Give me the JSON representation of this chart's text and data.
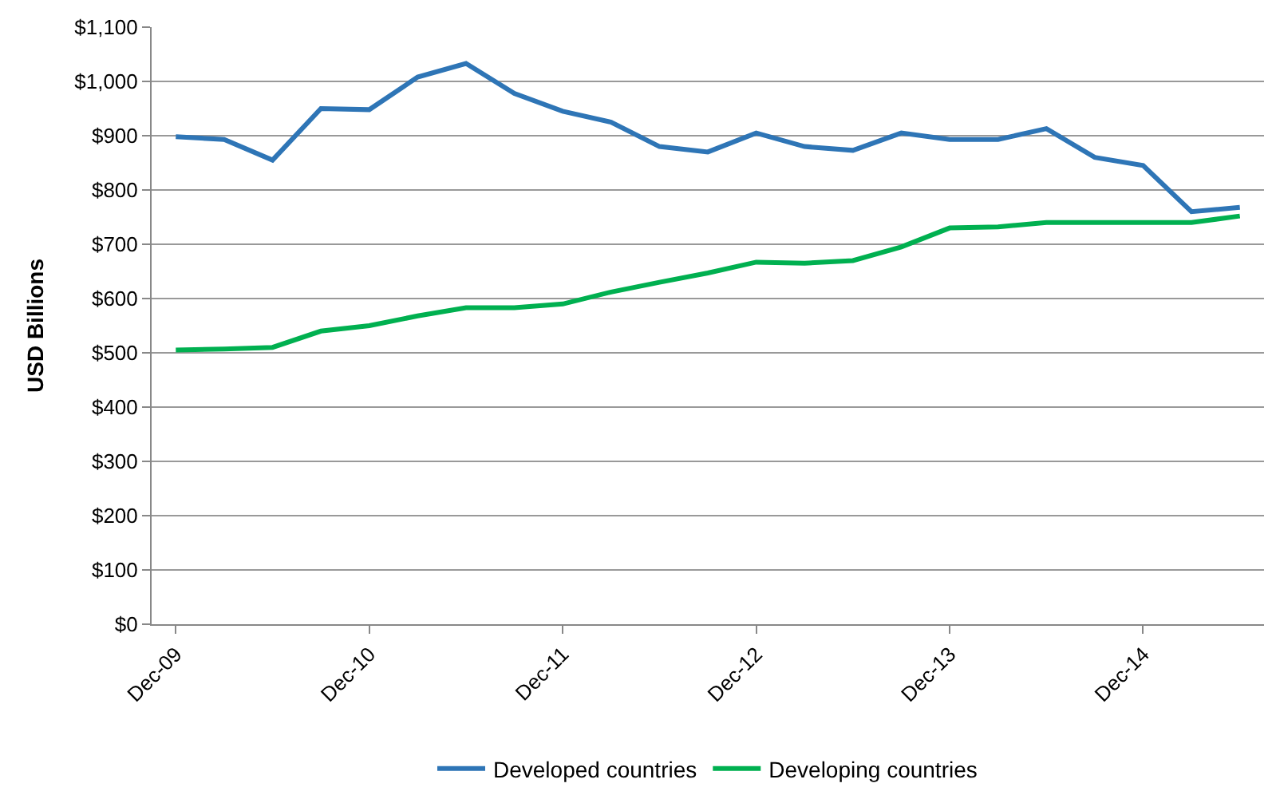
{
  "chart_data": {
    "type": "line",
    "ylabel": "USD Billions",
    "categories": [
      "Dec-09",
      null,
      null,
      null,
      "Dec-10",
      null,
      null,
      null,
      "Dec-11",
      null,
      null,
      null,
      "Dec-12",
      null,
      null,
      null,
      "Dec-13",
      null,
      null,
      null,
      "Dec-14",
      null,
      null
    ],
    "series": [
      {
        "name": "Developed countries",
        "color": "#2e75b6",
        "values": [
          898,
          893,
          855,
          950,
          948,
          1008,
          1033,
          978,
          945,
          925,
          880,
          870,
          905,
          880,
          873,
          905,
          893,
          893,
          913,
          860,
          845,
          760,
          768
        ]
      },
      {
        "name": "Developing countries",
        "color": "#00b050",
        "values": [
          505,
          507,
          510,
          540,
          550,
          568,
          583,
          583,
          590,
          612,
          630,
          647,
          667,
          665,
          670,
          695,
          730,
          732,
          740,
          740,
          740,
          740,
          752
        ]
      }
    ],
    "ylim": [
      0,
      1100
    ],
    "yticks": [
      {
        "value": 0,
        "label": "$0"
      },
      {
        "value": 100,
        "label": "$100"
      },
      {
        "value": 200,
        "label": "$200"
      },
      {
        "value": 300,
        "label": "$300"
      },
      {
        "value": 400,
        "label": "$400"
      },
      {
        "value": 500,
        "label": "$500"
      },
      {
        "value": 600,
        "label": "$600"
      },
      {
        "value": 700,
        "label": "$700"
      },
      {
        "value": 800,
        "label": "$800"
      },
      {
        "value": 900,
        "label": "$900"
      },
      {
        "value": 1000,
        "label": "$1,000"
      },
      {
        "value": 1100,
        "label": "$1,100"
      }
    ],
    "grid": "y",
    "legend": "bottom",
    "marker": "none",
    "line_style": "solid"
  }
}
